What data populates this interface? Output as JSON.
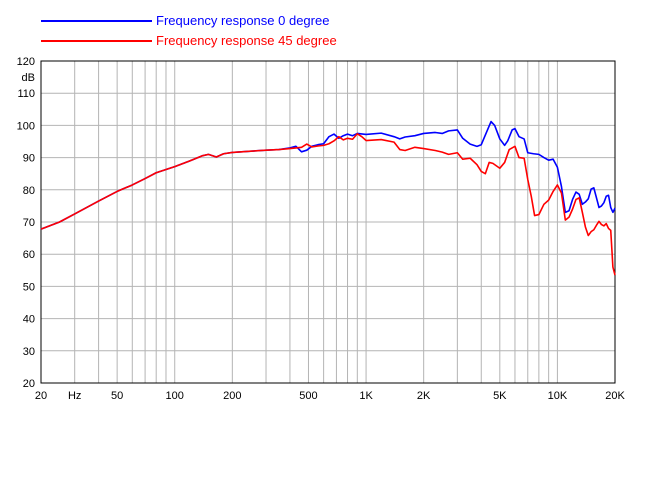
{
  "chart_data": {
    "type": "line",
    "x_scale": "log",
    "xlim": [
      20,
      20000
    ],
    "ylim": [
      20,
      120
    ],
    "grid": true,
    "legend_position": "top-left",
    "ylabel": "dB",
    "xlabel": "Hz",
    "x_ticks": [
      {
        "value": 20,
        "label": "20"
      },
      {
        "value": 50,
        "label": "50"
      },
      {
        "value": 100,
        "label": "100"
      },
      {
        "value": 200,
        "label": "200"
      },
      {
        "value": 500,
        "label": "500"
      },
      {
        "value": 1000,
        "label": "1K"
      },
      {
        "value": 2000,
        "label": "2K"
      },
      {
        "value": 5000,
        "label": "5K"
      },
      {
        "value": 10000,
        "label": "10K"
      },
      {
        "value": 20000,
        "label": "20K"
      }
    ],
    "y_ticks": [
      20,
      30,
      40,
      50,
      60,
      70,
      80,
      90,
      100,
      110,
      120
    ],
    "series": [
      {
        "name": "Frequency response 0 degree",
        "color": "#0000ff",
        "points": [
          [
            20,
            67.8
          ],
          [
            25,
            70
          ],
          [
            30,
            72.5
          ],
          [
            40,
            76.5
          ],
          [
            50,
            79.5
          ],
          [
            60,
            81.5
          ],
          [
            70,
            83.5
          ],
          [
            80,
            85.3
          ],
          [
            100,
            87.2
          ],
          [
            120,
            89
          ],
          [
            140,
            90.6
          ],
          [
            150,
            91
          ],
          [
            165,
            90.2
          ],
          [
            180,
            91.2
          ],
          [
            200,
            91.6
          ],
          [
            250,
            92
          ],
          [
            300,
            92.3
          ],
          [
            350,
            92.5
          ],
          [
            400,
            93
          ],
          [
            430,
            93.5
          ],
          [
            460,
            91.8
          ],
          [
            490,
            92.3
          ],
          [
            520,
            93.5
          ],
          [
            560,
            94
          ],
          [
            600,
            94.3
          ],
          [
            640,
            96.5
          ],
          [
            680,
            97.3
          ],
          [
            720,
            96
          ],
          [
            760,
            96.8
          ],
          [
            800,
            97.3
          ],
          [
            850,
            96.8
          ],
          [
            900,
            97.5
          ],
          [
            1000,
            97.2
          ],
          [
            1200,
            97.6
          ],
          [
            1400,
            96.5
          ],
          [
            1500,
            95.8
          ],
          [
            1600,
            96.4
          ],
          [
            1800,
            96.8
          ],
          [
            2000,
            97.5
          ],
          [
            2300,
            97.8
          ],
          [
            2500,
            97.5
          ],
          [
            2700,
            98.3
          ],
          [
            3000,
            98.6
          ],
          [
            3200,
            96
          ],
          [
            3500,
            94.2
          ],
          [
            3800,
            93.5
          ],
          [
            4000,
            94
          ],
          [
            4200,
            97
          ],
          [
            4500,
            101.2
          ],
          [
            4700,
            100
          ],
          [
            5000,
            95.8
          ],
          [
            5300,
            93.8
          ],
          [
            5500,
            95.2
          ],
          [
            5800,
            98.6
          ],
          [
            6000,
            99
          ],
          [
            6300,
            96.5
          ],
          [
            6700,
            95.8
          ],
          [
            7000,
            91.5
          ],
          [
            7500,
            91.2
          ],
          [
            8000,
            91
          ],
          [
            8500,
            90
          ],
          [
            9000,
            89.2
          ],
          [
            9500,
            89.5
          ],
          [
            10000,
            87
          ],
          [
            10500,
            81
          ],
          [
            11000,
            73
          ],
          [
            11500,
            73.5
          ],
          [
            12000,
            77
          ],
          [
            12500,
            79.3
          ],
          [
            13000,
            78.6
          ],
          [
            13500,
            75.5
          ],
          [
            14000,
            76.2
          ],
          [
            14500,
            77.2
          ],
          [
            15000,
            80.2
          ],
          [
            15500,
            80.6
          ],
          [
            16000,
            77.5
          ],
          [
            16500,
            74.5
          ],
          [
            17000,
            75
          ],
          [
            17500,
            76
          ],
          [
            18000,
            78
          ],
          [
            18500,
            78.3
          ],
          [
            19000,
            74.5
          ],
          [
            19500,
            73
          ],
          [
            20000,
            74.3
          ]
        ]
      },
      {
        "name": "Frequency response 45 degree",
        "color": "#ff0000",
        "points": [
          [
            20,
            67.8
          ],
          [
            25,
            70
          ],
          [
            30,
            72.5
          ],
          [
            40,
            76.5
          ],
          [
            50,
            79.5
          ],
          [
            60,
            81.5
          ],
          [
            70,
            83.5
          ],
          [
            80,
            85.3
          ],
          [
            100,
            87.2
          ],
          [
            120,
            89
          ],
          [
            140,
            90.6
          ],
          [
            150,
            91
          ],
          [
            165,
            90.2
          ],
          [
            180,
            91.2
          ],
          [
            200,
            91.6
          ],
          [
            250,
            92
          ],
          [
            300,
            92.3
          ],
          [
            350,
            92.5
          ],
          [
            400,
            92.8
          ],
          [
            430,
            93
          ],
          [
            460,
            93.2
          ],
          [
            490,
            94.2
          ],
          [
            520,
            93.3
          ],
          [
            560,
            93.6
          ],
          [
            600,
            93.8
          ],
          [
            640,
            94.3
          ],
          [
            680,
            95.2
          ],
          [
            720,
            96.5
          ],
          [
            760,
            95.5
          ],
          [
            800,
            96
          ],
          [
            850,
            95.7
          ],
          [
            900,
            97.4
          ],
          [
            950,
            96.5
          ],
          [
            1000,
            95.3
          ],
          [
            1200,
            95.6
          ],
          [
            1400,
            94.8
          ],
          [
            1500,
            92.5
          ],
          [
            1600,
            92.2
          ],
          [
            1800,
            93.2
          ],
          [
            2000,
            92.8
          ],
          [
            2300,
            92.2
          ],
          [
            2500,
            91.7
          ],
          [
            2700,
            91
          ],
          [
            3000,
            91.5
          ],
          [
            3200,
            89.5
          ],
          [
            3500,
            89.8
          ],
          [
            3800,
            87.8
          ],
          [
            4000,
            85.7
          ],
          [
            4200,
            85
          ],
          [
            4400,
            88.5
          ],
          [
            4600,
            88.2
          ],
          [
            5000,
            86.7
          ],
          [
            5300,
            88.5
          ],
          [
            5600,
            92.5
          ],
          [
            6000,
            93.5
          ],
          [
            6300,
            90
          ],
          [
            6700,
            89.8
          ],
          [
            7000,
            83.2
          ],
          [
            7300,
            78
          ],
          [
            7600,
            72
          ],
          [
            8000,
            72.3
          ],
          [
            8500,
            75.5
          ],
          [
            9000,
            76.8
          ],
          [
            9500,
            79.5
          ],
          [
            10000,
            81.5
          ],
          [
            10500,
            79
          ],
          [
            11000,
            70.6
          ],
          [
            11500,
            71.5
          ],
          [
            12000,
            74
          ],
          [
            12500,
            77
          ],
          [
            13000,
            77.5
          ],
          [
            13500,
            73
          ],
          [
            14000,
            68.5
          ],
          [
            14500,
            65.8
          ],
          [
            15000,
            67
          ],
          [
            15500,
            67.6
          ],
          [
            16000,
            69
          ],
          [
            16500,
            70.2
          ],
          [
            17000,
            69.2
          ],
          [
            17500,
            68.8
          ],
          [
            18000,
            69.5
          ],
          [
            18500,
            68
          ],
          [
            19000,
            67.4
          ],
          [
            19500,
            56
          ],
          [
            20000,
            53.5
          ]
        ]
      }
    ]
  }
}
